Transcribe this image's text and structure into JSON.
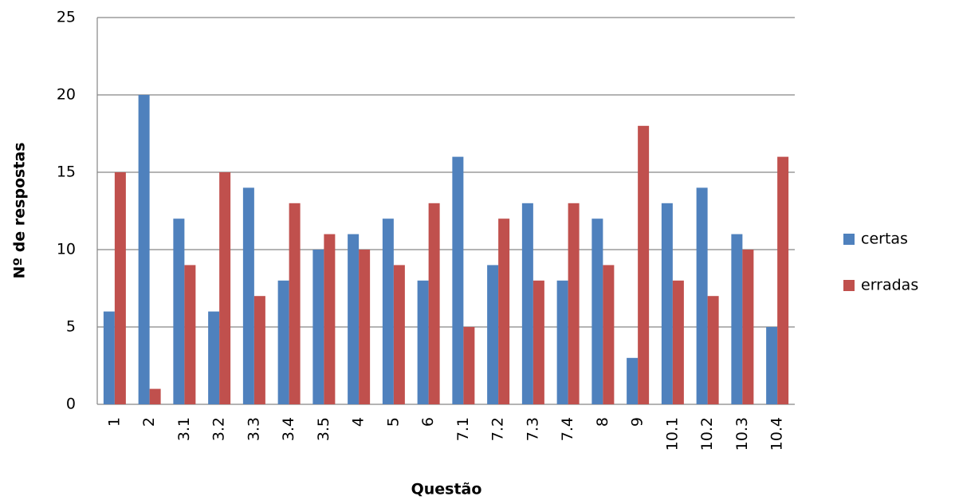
{
  "chart_data": {
    "type": "bar",
    "y_label": "Nº de respostas",
    "x_label": "Questão",
    "categories": [
      "1",
      "2",
      "3.1",
      "3.2",
      "3.3",
      "3.4",
      "3.5",
      "4",
      "5",
      "6",
      "7.1",
      "7.2",
      "7.3",
      "7.4",
      "8",
      "9",
      "10.1",
      "10.2",
      "10.3",
      "10.4"
    ],
    "series": [
      {
        "name": "certas",
        "color": "#4f81bd",
        "values": [
          6,
          20,
          12,
          6,
          14,
          8,
          10,
          11,
          12,
          8,
          16,
          9,
          13,
          8,
          12,
          3,
          13,
          14,
          11,
          5
        ]
      },
      {
        "name": "erradas",
        "color": "#c0504d",
        "values": [
          15,
          1,
          9,
          15,
          7,
          13,
          11,
          10,
          9,
          13,
          5,
          12,
          8,
          13,
          9,
          18,
          8,
          7,
          10,
          16
        ]
      }
    ],
    "ylim": [
      0,
      25
    ],
    "yticks": [
      0,
      5,
      10,
      15,
      20,
      25
    ],
    "grid": true,
    "legend": "right"
  }
}
